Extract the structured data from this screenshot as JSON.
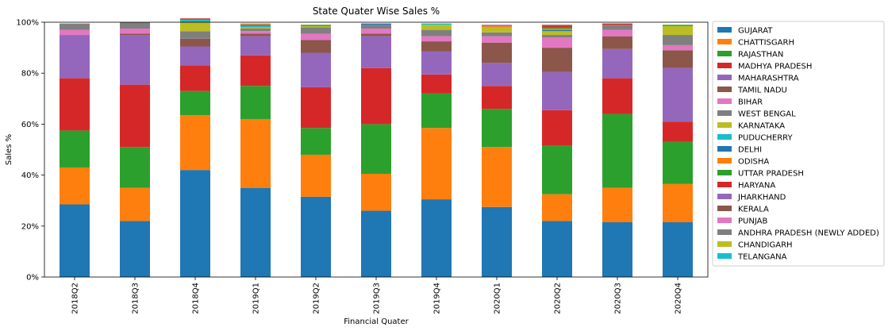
{
  "chart_data": {
    "type": "bar",
    "stacked": true,
    "title": "State Quater Wise Sales %",
    "xlabel": "Financial Quater",
    "ylabel": "Sales %",
    "ylim": [
      0,
      100
    ],
    "ytick_values": [
      0,
      20,
      40,
      60,
      80,
      100
    ],
    "ytick_labels": [
      "0%",
      "20%",
      "40%",
      "60%",
      "80%",
      "100%"
    ],
    "legend_position": "outside-right",
    "categories": [
      "2018Q2",
      "2018Q3",
      "2018Q4",
      "2019Q1",
      "2019Q2",
      "2019Q3",
      "2019Q4",
      "2020Q1",
      "2020Q2",
      "2020Q3",
      "2020Q4"
    ],
    "series": [
      {
        "name": "GUJARAT",
        "color": "#1f77b4",
        "values": [
          28.5,
          22.0,
          42.0,
          35.0,
          31.5,
          26.0,
          30.5,
          27.5,
          22.0,
          21.5,
          21.5
        ]
      },
      {
        "name": "CHATTISGARH",
        "color": "#ff7f0e",
        "values": [
          14.5,
          13.0,
          21.5,
          27.0,
          16.5,
          14.5,
          28.0,
          23.5,
          10.5,
          13.5,
          15.0
        ]
      },
      {
        "name": "RAJASTHAN",
        "color": "#2ca02c",
        "values": [
          14.5,
          16.0,
          9.5,
          13.0,
          10.5,
          19.5,
          13.5,
          15.0,
          19.0,
          29.0,
          16.5
        ]
      },
      {
        "name": "MADHYA PRADESH",
        "color": "#d62728",
        "values": [
          20.5,
          24.5,
          10.0,
          12.0,
          16.0,
          22.0,
          7.5,
          9.0,
          14.0,
          14.0,
          8.0
        ]
      },
      {
        "name": "MAHARASHTRA",
        "color": "#9467bd",
        "values": [
          17.0,
          19.5,
          7.5,
          7.5,
          13.5,
          12.5,
          9.0,
          9.0,
          15.0,
          11.5,
          21.0
        ]
      },
      {
        "name": "TAMIL NADU",
        "color": "#8c564b",
        "values": [
          0.0,
          0.5,
          3.0,
          1.0,
          5.0,
          1.0,
          4.0,
          8.0,
          9.5,
          5.0,
          7.0
        ]
      },
      {
        "name": "BIHAR",
        "color": "#e377c2",
        "values": [
          2.0,
          2.0,
          0.0,
          1.0,
          2.5,
          2.0,
          2.0,
          2.5,
          4.0,
          2.5,
          2.0
        ]
      },
      {
        "name": "WEST BENGAL",
        "color": "#7f7f7f",
        "values": [
          2.5,
          2.5,
          3.0,
          1.0,
          2.5,
          1.5,
          2.5,
          1.5,
          1.0,
          2.0,
          4.0
        ]
      },
      {
        "name": "KARNATAKA",
        "color": "#bcbd22",
        "values": [
          0.0,
          0.0,
          3.5,
          0.5,
          0.5,
          0.0,
          2.0,
          2.0,
          1.5,
          0.0,
          3.5
        ]
      },
      {
        "name": "PUDUCHERRY",
        "color": "#17becf",
        "values": [
          0.0,
          0.0,
          1.0,
          0.5,
          0.0,
          0.0,
          0.5,
          0.0,
          0.0,
          0.0,
          0.0
        ]
      },
      {
        "name": "DELHI",
        "color": "#1f77b4",
        "values": [
          0.0,
          0.0,
          0.0,
          0.5,
          0.0,
          0.5,
          0.0,
          0.0,
          0.5,
          0.0,
          0.0
        ]
      },
      {
        "name": "ODISHA",
        "color": "#ff7f0e",
        "values": [
          0.0,
          0.0,
          0.0,
          0.5,
          0.0,
          0.0,
          0.0,
          0.5,
          0.5,
          0.0,
          0.0
        ]
      },
      {
        "name": "UTTAR PRADESH",
        "color": "#2ca02c",
        "values": [
          0.0,
          0.0,
          0.0,
          0.0,
          0.5,
          0.0,
          0.0,
          0.0,
          0.5,
          0.0,
          0.5
        ]
      },
      {
        "name": "HARYANA",
        "color": "#d62728",
        "values": [
          0.0,
          0.0,
          0.5,
          0.0,
          0.0,
          0.0,
          0.0,
          0.0,
          0.5,
          0.5,
          0.0
        ]
      },
      {
        "name": "JHARKHAND",
        "color": "#9467bd",
        "values": [
          0.0,
          0.0,
          0.0,
          0.0,
          0.0,
          0.0,
          0.0,
          0.5,
          0.0,
          0.0,
          0.0
        ]
      },
      {
        "name": "KERALA",
        "color": "#8c564b",
        "values": [
          0.0,
          0.0,
          0.0,
          0.0,
          0.0,
          0.0,
          0.0,
          0.0,
          0.5,
          0.0,
          0.0
        ]
      },
      {
        "name": "PUNJAB",
        "color": "#e377c2",
        "values": [
          0.0,
          0.0,
          0.0,
          0.0,
          0.0,
          0.0,
          0.0,
          0.0,
          0.0,
          0.0,
          0.0
        ]
      },
      {
        "name": "ANDHRA PRADESH (NEWLY ADDED)",
        "color": "#7f7f7f",
        "values": [
          0.0,
          0.0,
          0.0,
          0.0,
          0.0,
          0.0,
          0.0,
          0.0,
          0.0,
          0.0,
          0.0
        ]
      },
      {
        "name": "CHANDIGARH",
        "color": "#bcbd22",
        "values": [
          0.0,
          0.0,
          0.0,
          0.0,
          0.0,
          0.0,
          0.0,
          0.0,
          0.0,
          0.0,
          0.0
        ]
      },
      {
        "name": "TELANGANA",
        "color": "#17becf",
        "values": [
          0.0,
          0.0,
          0.0,
          0.0,
          0.0,
          0.0,
          0.0,
          0.0,
          0.0,
          0.0,
          0.0
        ]
      }
    ]
  }
}
